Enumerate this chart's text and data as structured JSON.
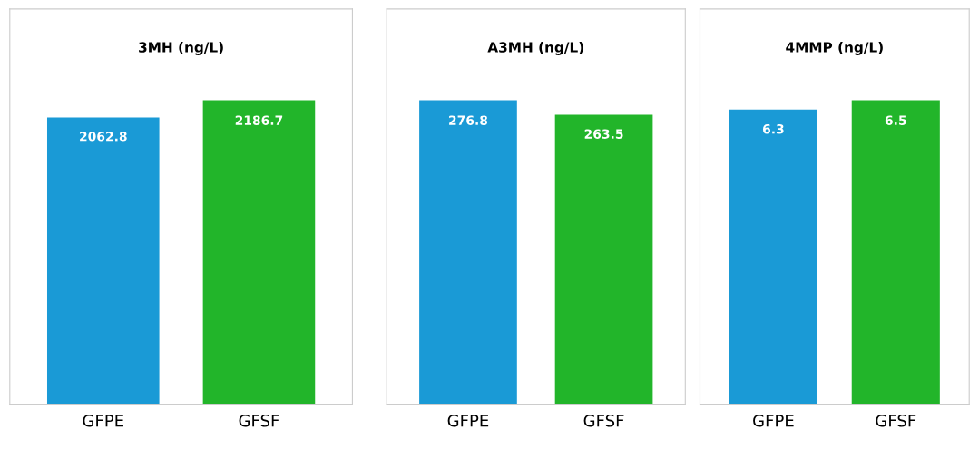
{
  "chart_data": [
    {
      "type": "bar",
      "title": "3MH (ng/L)",
      "categories": [
        "GFPE",
        "GFSF"
      ],
      "values": [
        2062.8,
        2186.7
      ],
      "colors": [
        "#1a9ad6",
        "#22b52a"
      ],
      "data_labels": true,
      "tick_labels": "x",
      "grid": false,
      "legend": false
    },
    {
      "type": "bar",
      "title": "A3MH (ng/L)",
      "categories": [
        "GFPE",
        "GFSF"
      ],
      "values": [
        276.8,
        263.5
      ],
      "colors": [
        "#1a9ad6",
        "#22b52a"
      ],
      "data_labels": true,
      "tick_labels": "x",
      "grid": false,
      "legend": false
    },
    {
      "type": "bar",
      "title": "4MMP (ng/L)",
      "categories": [
        "GFPE",
        "GFSF"
      ],
      "values": [
        6.3,
        6.5
      ],
      "colors": [
        "#1a9ad6",
        "#22b52a"
      ],
      "data_labels": true,
      "tick_labels": "x",
      "grid": false,
      "legend": false
    }
  ]
}
